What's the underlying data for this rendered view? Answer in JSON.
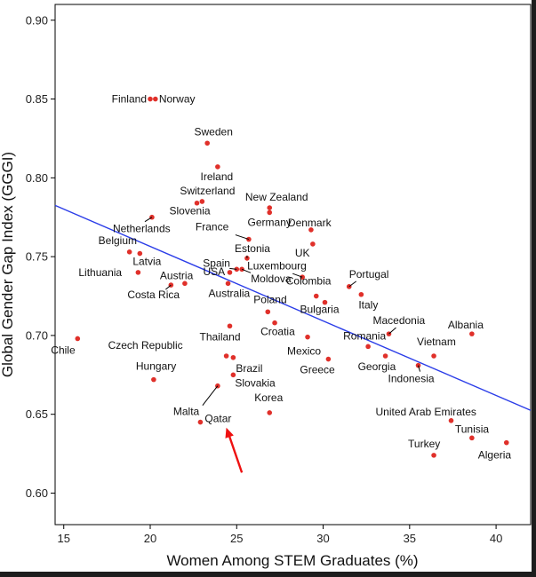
{
  "chart_data": {
    "type": "scatter",
    "title": "",
    "xlabel": "Women Among STEM Graduates (%)",
    "ylabel": "Global Gender Gap Index (GGGI)",
    "xlim": [
      14.5,
      42
    ],
    "ylim": [
      0.58,
      0.91
    ],
    "xticks": [
      15,
      20,
      25,
      30,
      35,
      40
    ],
    "yticks": [
      0.6,
      0.65,
      0.7,
      0.75,
      0.8,
      0.85,
      0.9
    ],
    "xtick_labels": [
      "15",
      "20",
      "25",
      "30",
      "35",
      "40"
    ],
    "ytick_labels": [
      "0.60",
      "0.65",
      "0.70",
      "0.75",
      "0.80",
      "0.85",
      "0.90"
    ],
    "grid": false,
    "point_color": "#e0302a",
    "trendline": {
      "x": [
        14.5,
        42
      ],
      "y": [
        0.7825,
        0.6525
      ],
      "color": "#2b3de8"
    },
    "annotation_arrow": {
      "from": [
        25.3,
        0.613
      ],
      "to": [
        24.4,
        0.6415
      ],
      "color": "#ee1111"
    },
    "points": [
      {
        "name": "Finland",
        "x": 20.0,
        "y": 0.85
      },
      {
        "name": "Norway",
        "x": 20.3,
        "y": 0.85
      },
      {
        "name": "Sweden",
        "x": 23.3,
        "y": 0.822
      },
      {
        "name": "Ireland",
        "x": 23.9,
        "y": 0.807
      },
      {
        "name": "Switzerland",
        "x": 23.0,
        "y": 0.785
      },
      {
        "name": "Slovenia",
        "x": 22.7,
        "y": 0.784
      },
      {
        "name": "New Zealand",
        "x": 26.9,
        "y": 0.781
      },
      {
        "name": "Germany",
        "x": 26.9,
        "y": 0.778
      },
      {
        "name": "Netherlands",
        "x": 20.1,
        "y": 0.775
      },
      {
        "name": "Denmark",
        "x": 29.3,
        "y": 0.767
      },
      {
        "name": "France",
        "x": 25.7,
        "y": 0.761
      },
      {
        "name": "UK",
        "x": 29.4,
        "y": 0.758
      },
      {
        "name": "Belgium",
        "x": 18.8,
        "y": 0.753
      },
      {
        "name": "Latvia",
        "x": 19.4,
        "y": 0.752
      },
      {
        "name": "Estonia",
        "x": 25.6,
        "y": 0.749
      },
      {
        "name": "Spain",
        "x": 25.0,
        "y": 0.742
      },
      {
        "name": "Luxembourg",
        "x": 25.3,
        "y": 0.742
      },
      {
        "name": "USA",
        "x": 24.6,
        "y": 0.74
      },
      {
        "name": "Lithuania",
        "x": 19.3,
        "y": 0.74
      },
      {
        "name": "Moldova",
        "x": 28.8,
        "y": 0.737
      },
      {
        "name": "Portugal",
        "x": 31.5,
        "y": 0.731
      },
      {
        "name": "Austria",
        "x": 22.0,
        "y": 0.733
      },
      {
        "name": "Costa Rica",
        "x": 21.2,
        "y": 0.732
      },
      {
        "name": "Australia",
        "x": 24.5,
        "y": 0.733
      },
      {
        "name": "Colombia",
        "x": 29.6,
        "y": 0.725
      },
      {
        "name": "Italy",
        "x": 32.2,
        "y": 0.726
      },
      {
        "name": "Bulgaria",
        "x": 30.1,
        "y": 0.721
      },
      {
        "name": "Poland",
        "x": 26.8,
        "y": 0.715
      },
      {
        "name": "Croatia",
        "x": 27.2,
        "y": 0.708
      },
      {
        "name": "Macedonia",
        "x": 33.8,
        "y": 0.701
      },
      {
        "name": "Albania",
        "x": 38.6,
        "y": 0.701
      },
      {
        "name": "Thailand",
        "x": 24.6,
        "y": 0.706
      },
      {
        "name": "Mexico",
        "x": 29.1,
        "y": 0.699
      },
      {
        "name": "Chile",
        "x": 15.8,
        "y": 0.698
      },
      {
        "name": "Romania",
        "x": 32.6,
        "y": 0.693
      },
      {
        "name": "Vietnam",
        "x": 36.4,
        "y": 0.687
      },
      {
        "name": "Czech Republic",
        "x": 24.4,
        "y": 0.687
      },
      {
        "name": "Brazil",
        "x": 24.8,
        "y": 0.686
      },
      {
        "name": "Georgia",
        "x": 33.6,
        "y": 0.687
      },
      {
        "name": "Greece",
        "x": 30.3,
        "y": 0.685
      },
      {
        "name": "Indonesia",
        "x": 35.5,
        "y": 0.681
      },
      {
        "name": "Hungary",
        "x": 20.2,
        "y": 0.672
      },
      {
        "name": "Slovakia",
        "x": 24.8,
        "y": 0.675
      },
      {
        "name": "Malta",
        "x": 23.9,
        "y": 0.668
      },
      {
        "name": "Korea",
        "x": 26.9,
        "y": 0.651
      },
      {
        "name": "United Arab Emirates",
        "x": 37.4,
        "y": 0.646
      },
      {
        "name": "Qatar",
        "x": 22.9,
        "y": 0.645
      },
      {
        "name": "Tunisia",
        "x": 38.6,
        "y": 0.635
      },
      {
        "name": "Algeria",
        "x": 40.6,
        "y": 0.632
      },
      {
        "name": "Turkey",
        "x": 36.4,
        "y": 0.624
      }
    ]
  }
}
